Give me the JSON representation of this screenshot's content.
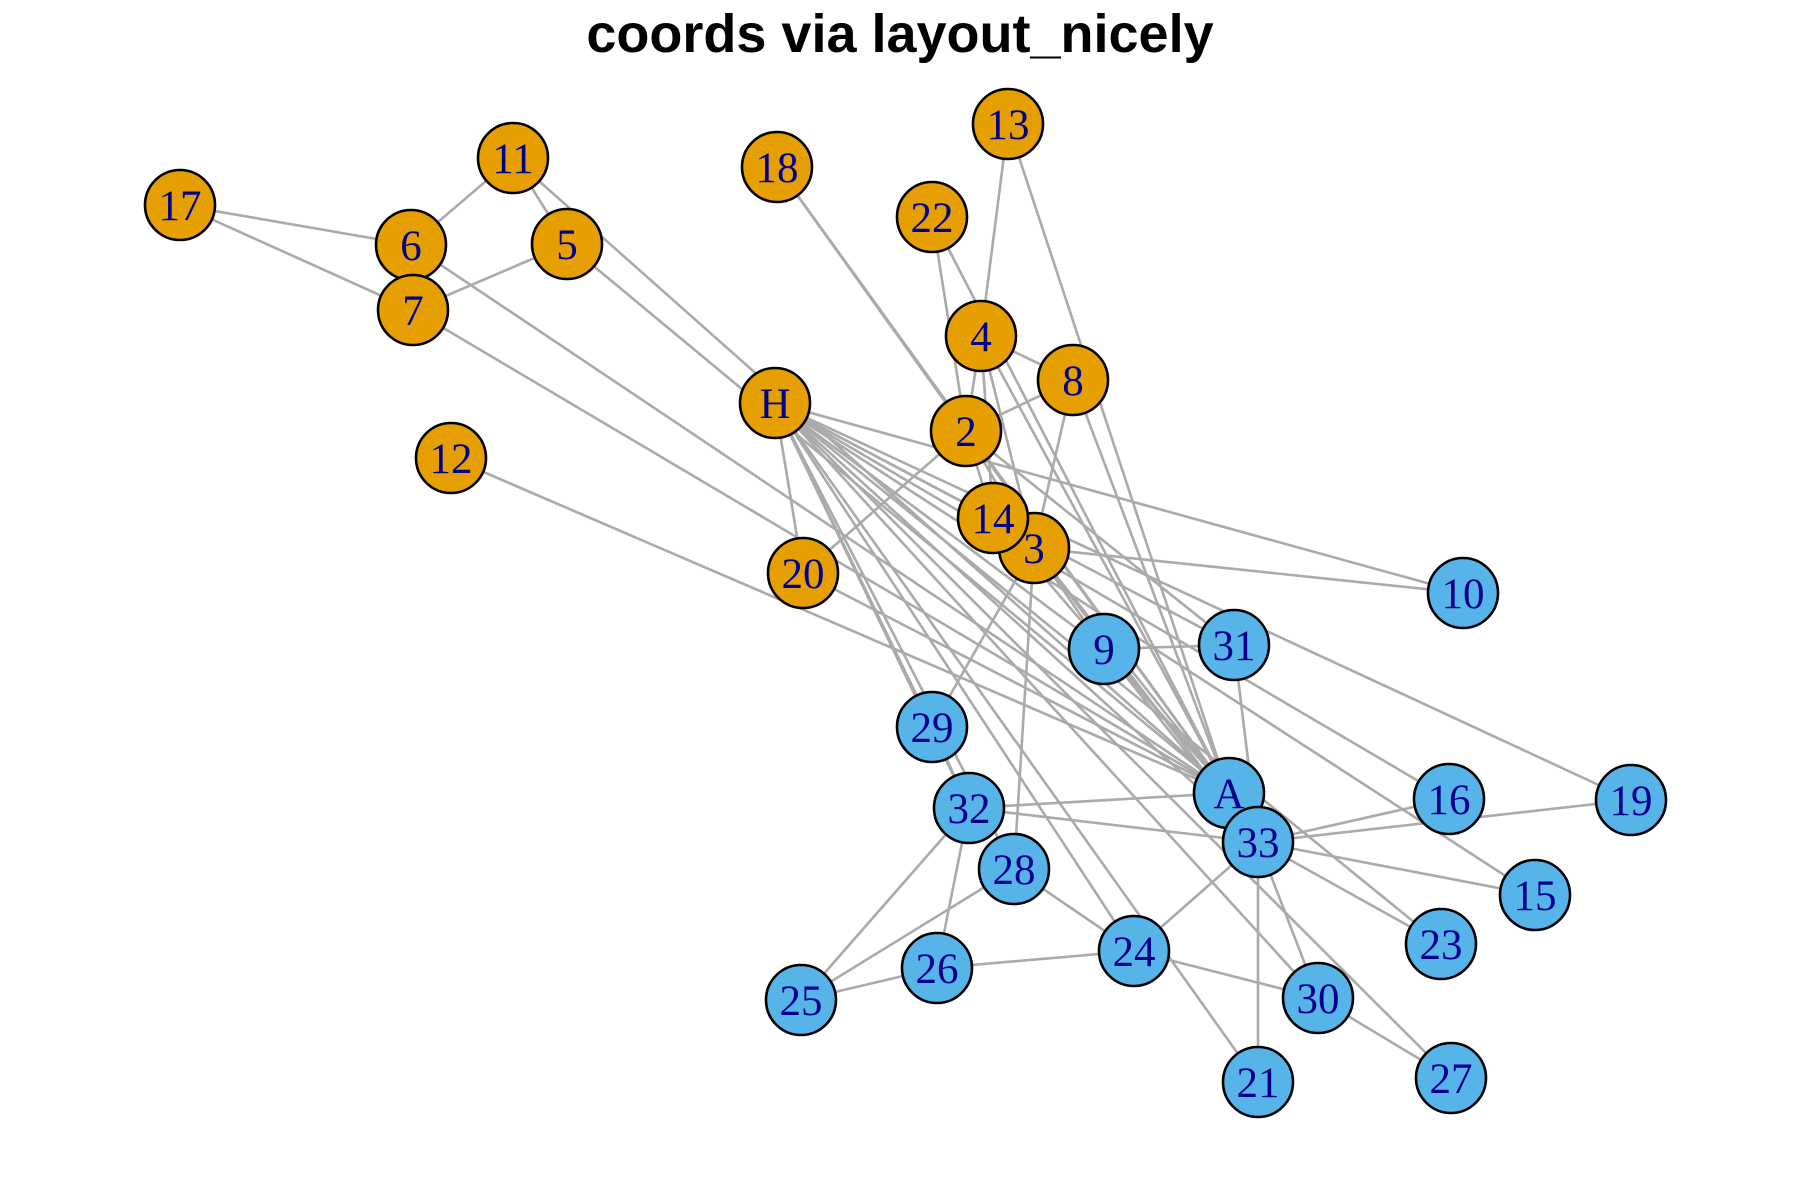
{
  "title": "coords via layout_nicely",
  "colors": {
    "group_1": "#E69F00",
    "group_2": "#56B4E9",
    "edge": "#AAAAAA",
    "node_border": "#000000",
    "label": "#00008B"
  },
  "nodes": [
    {
      "id": "A",
      "label": "A",
      "group": "group_2"
    },
    {
      "id": "2",
      "label": "2",
      "group": "group_1"
    },
    {
      "id": "3",
      "label": "3",
      "group": "group_1"
    },
    {
      "id": "4",
      "label": "4",
      "group": "group_1"
    },
    {
      "id": "5",
      "label": "5",
      "group": "group_1"
    },
    {
      "id": "6",
      "label": "6",
      "group": "group_1"
    },
    {
      "id": "7",
      "label": "7",
      "group": "group_1"
    },
    {
      "id": "8",
      "label": "8",
      "group": "group_1"
    },
    {
      "id": "9",
      "label": "9",
      "group": "group_2"
    },
    {
      "id": "10",
      "label": "10",
      "group": "group_2"
    },
    {
      "id": "11",
      "label": "11",
      "group": "group_1"
    },
    {
      "id": "12",
      "label": "12",
      "group": "group_1"
    },
    {
      "id": "13",
      "label": "13",
      "group": "group_1"
    },
    {
      "id": "14",
      "label": "14",
      "group": "group_1"
    },
    {
      "id": "15",
      "label": "15",
      "group": "group_2"
    },
    {
      "id": "16",
      "label": "16",
      "group": "group_2"
    },
    {
      "id": "17",
      "label": "17",
      "group": "group_1"
    },
    {
      "id": "18",
      "label": "18",
      "group": "group_1"
    },
    {
      "id": "19",
      "label": "19",
      "group": "group_2"
    },
    {
      "id": "20",
      "label": "20",
      "group": "group_1"
    },
    {
      "id": "21",
      "label": "21",
      "group": "group_2"
    },
    {
      "id": "22",
      "label": "22",
      "group": "group_1"
    },
    {
      "id": "23",
      "label": "23",
      "group": "group_2"
    },
    {
      "id": "24",
      "label": "24",
      "group": "group_2"
    },
    {
      "id": "25",
      "label": "25",
      "group": "group_2"
    },
    {
      "id": "26",
      "label": "26",
      "group": "group_2"
    },
    {
      "id": "27",
      "label": "27",
      "group": "group_2"
    },
    {
      "id": "28",
      "label": "28",
      "group": "group_2"
    },
    {
      "id": "29",
      "label": "29",
      "group": "group_2"
    },
    {
      "id": "30",
      "label": "30",
      "group": "group_2"
    },
    {
      "id": "31",
      "label": "31",
      "group": "group_2"
    },
    {
      "id": "32",
      "label": "32",
      "group": "group_2"
    },
    {
      "id": "33",
      "label": "33",
      "group": "group_2"
    },
    {
      "id": "H",
      "label": "H",
      "group": "group_1"
    }
  ],
  "edges": [
    [
      "A",
      "2"
    ],
    [
      "A",
      "3"
    ],
    [
      "A",
      "4"
    ],
    [
      "A",
      "5"
    ],
    [
      "A",
      "6"
    ],
    [
      "A",
      "7"
    ],
    [
      "A",
      "8"
    ],
    [
      "A",
      "9"
    ],
    [
      "A",
      "11"
    ],
    [
      "A",
      "12"
    ],
    [
      "A",
      "13"
    ],
    [
      "A",
      "14"
    ],
    [
      "A",
      "18"
    ],
    [
      "A",
      "20"
    ],
    [
      "A",
      "22"
    ],
    [
      "A",
      "32"
    ],
    [
      "2",
      "3"
    ],
    [
      "2",
      "4"
    ],
    [
      "2",
      "8"
    ],
    [
      "2",
      "14"
    ],
    [
      "2",
      "18"
    ],
    [
      "2",
      "20"
    ],
    [
      "2",
      "22"
    ],
    [
      "2",
      "31"
    ],
    [
      "3",
      "4"
    ],
    [
      "3",
      "8"
    ],
    [
      "3",
      "9"
    ],
    [
      "3",
      "10"
    ],
    [
      "3",
      "14"
    ],
    [
      "3",
      "28"
    ],
    [
      "3",
      "29"
    ],
    [
      "3",
      "33"
    ],
    [
      "4",
      "8"
    ],
    [
      "4",
      "13"
    ],
    [
      "4",
      "14"
    ],
    [
      "5",
      "7"
    ],
    [
      "5",
      "11"
    ],
    [
      "6",
      "7"
    ],
    [
      "6",
      "11"
    ],
    [
      "6",
      "17"
    ],
    [
      "7",
      "17"
    ],
    [
      "9",
      "31"
    ],
    [
      "9",
      "33"
    ],
    [
      "9",
      "H"
    ],
    [
      "10",
      "H"
    ],
    [
      "14",
      "H"
    ],
    [
      "15",
      "33"
    ],
    [
      "15",
      "H"
    ],
    [
      "16",
      "33"
    ],
    [
      "16",
      "H"
    ],
    [
      "19",
      "33"
    ],
    [
      "19",
      "H"
    ],
    [
      "20",
      "H"
    ],
    [
      "21",
      "33"
    ],
    [
      "21",
      "H"
    ],
    [
      "23",
      "33"
    ],
    [
      "23",
      "H"
    ],
    [
      "24",
      "26"
    ],
    [
      "24",
      "28"
    ],
    [
      "24",
      "30"
    ],
    [
      "24",
      "33"
    ],
    [
      "24",
      "H"
    ],
    [
      "25",
      "26"
    ],
    [
      "25",
      "28"
    ],
    [
      "25",
      "32"
    ],
    [
      "26",
      "32"
    ],
    [
      "27",
      "30"
    ],
    [
      "27",
      "H"
    ],
    [
      "28",
      "H"
    ],
    [
      "29",
      "32"
    ],
    [
      "29",
      "H"
    ],
    [
      "30",
      "33"
    ],
    [
      "30",
      "H"
    ],
    [
      "31",
      "33"
    ],
    [
      "31",
      "H"
    ],
    [
      "32",
      "33"
    ],
    [
      "32",
      "H"
    ],
    [
      "33",
      "H"
    ]
  ]
}
